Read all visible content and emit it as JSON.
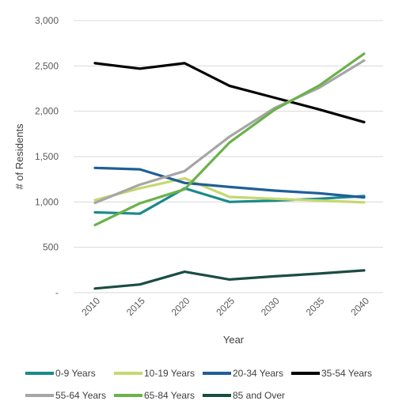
{
  "chart_data": {
    "type": "line",
    "title": "",
    "xlabel": "Year",
    "ylabel": "# of Residents",
    "x": [
      "2010",
      "2015",
      "2020",
      "2025",
      "2030",
      "2035",
      "2040"
    ],
    "ylim": [
      0,
      3000
    ],
    "y_ticks": [
      {
        "value": 0,
        "label": "-"
      },
      {
        "value": 500,
        "label": "500"
      },
      {
        "value": 1000,
        "label": "1,000"
      },
      {
        "value": 1500,
        "label": "1,500"
      },
      {
        "value": 2000,
        "label": "2,000"
      },
      {
        "value": 2500,
        "label": "2,500"
      },
      {
        "value": 3000,
        "label": "3,000"
      }
    ],
    "grid": true,
    "legend": "bottom",
    "series": [
      {
        "name": "0-9 Years",
        "color": "#1a8a8a",
        "values": [
          885,
          870,
          1150,
          1000,
          1015,
          1035,
          1065
        ]
      },
      {
        "name": "10-19 Years",
        "color": "#c6d86e",
        "values": [
          1020,
          1150,
          1260,
          1055,
          1035,
          1015,
          995
        ]
      },
      {
        "name": "20-34 Years",
        "color": "#1f5f99",
        "values": [
          1375,
          1360,
          1210,
          1165,
          1125,
          1095,
          1050
        ]
      },
      {
        "name": "35-54 Years",
        "color": "#000000",
        "values": [
          2530,
          2470,
          2530,
          2280,
          2150,
          2020,
          1880
        ]
      },
      {
        "name": "55-64 Years",
        "color": "#a6a6a6",
        "values": [
          990,
          1190,
          1340,
          1720,
          2035,
          2260,
          2560
        ]
      },
      {
        "name": "65-84 Years",
        "color": "#6ab24a",
        "values": [
          745,
          985,
          1140,
          1655,
          2015,
          2285,
          2635
        ]
      },
      {
        "name": "85 and Over",
        "color": "#1b4d42",
        "values": [
          45,
          90,
          230,
          145,
          180,
          210,
          245
        ]
      }
    ]
  }
}
